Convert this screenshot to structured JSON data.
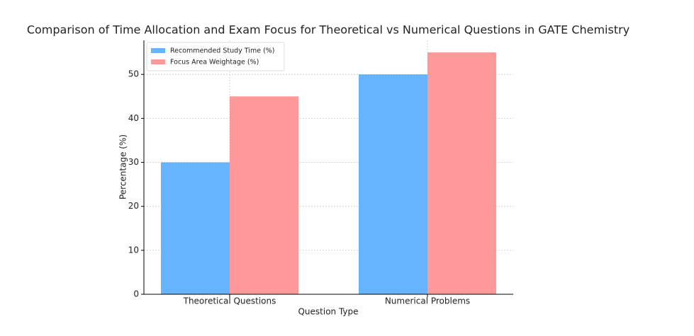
{
  "chart_data": {
    "type": "bar",
    "title": "Comparison of Time Allocation and Exam Focus for Theoretical vs Numerical Questions in GATE Chemistry",
    "xlabel": "Question Type",
    "ylabel": "Percentage (%)",
    "categories": [
      "Theoretical Questions",
      "Numerical Problems"
    ],
    "series": [
      {
        "name": "Recommended Study Time (%)",
        "color": "#66b3ff",
        "values": [
          30,
          50
        ]
      },
      {
        "name": "Focus Area Weightage (%)",
        "color": "#ff9999",
        "values": [
          45,
          55
        ]
      }
    ],
    "ylim": [
      0,
      57.75
    ],
    "yticks": [
      0,
      10,
      20,
      30,
      40,
      50
    ],
    "grid": true,
    "legend": "upper left"
  }
}
